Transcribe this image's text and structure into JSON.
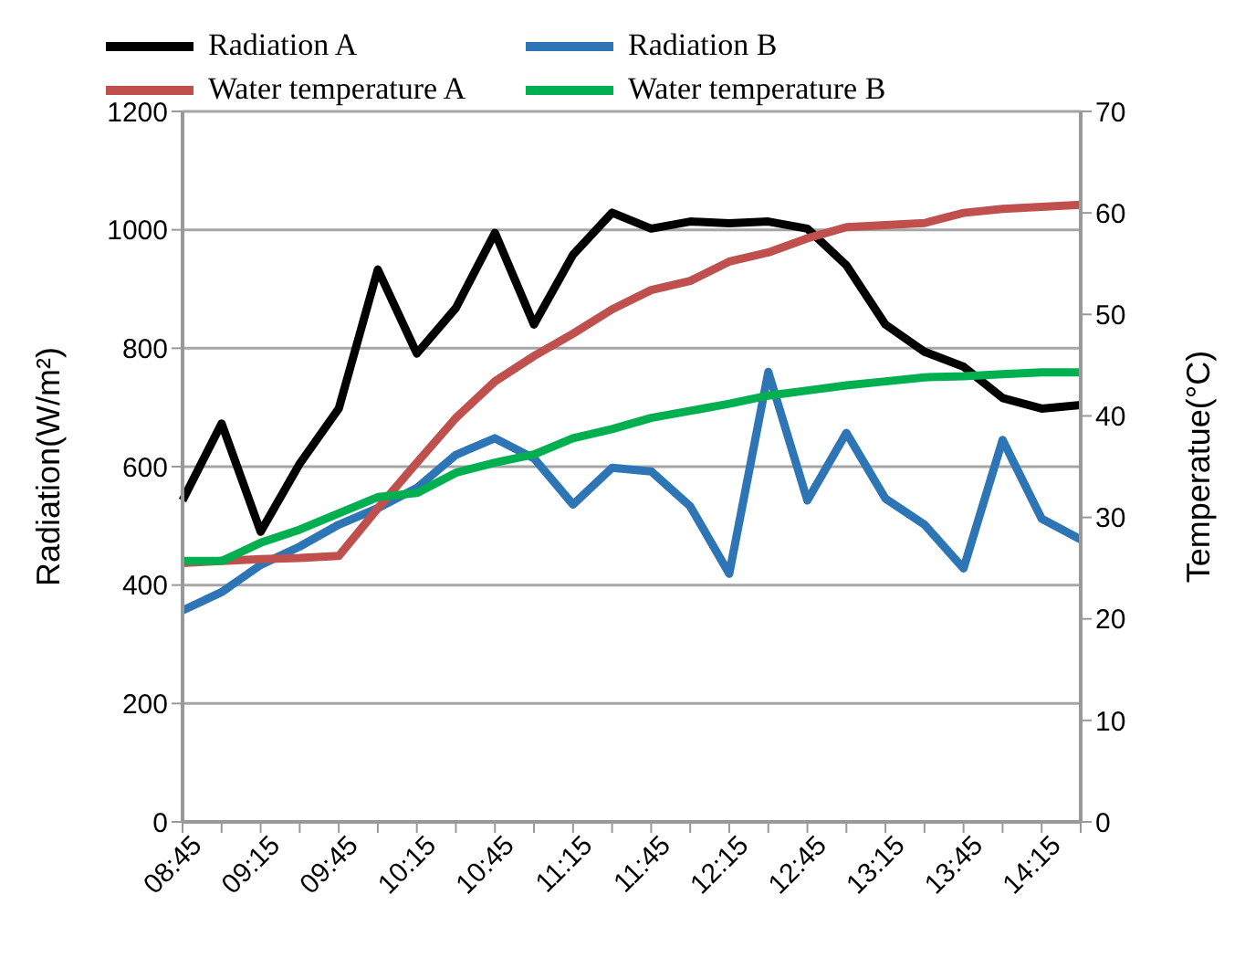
{
  "chart_data": {
    "type": "line",
    "xlabel": null,
    "ylabel": "Radiation(W/m²)",
    "y2label": "Temperatue(°C)",
    "categories": [
      "08:45",
      null,
      "09:15",
      null,
      "09:45",
      null,
      "10:15",
      null,
      "10:45",
      null,
      "11:15",
      null,
      "11:45",
      null,
      "12:15",
      null,
      "12:45",
      null,
      "13:15",
      null,
      "13:45",
      null,
      "14:15",
      null
    ],
    "series": [
      {
        "name": "Radiation A",
        "color": "#000000",
        "values": [
          543,
          673,
          490,
          605,
          698,
          933,
          791,
          868,
          995,
          840,
          958,
          1029,
          1002,
          1014,
          1011,
          1014,
          1002,
          940,
          840,
          794,
          769,
          716,
          698,
          704
        ]
      },
      {
        "name": "Radiation B",
        "color": "#2e75b6",
        "values": [
          357,
          388,
          434,
          465,
          502,
          530,
          564,
          620,
          648,
          614,
          536,
          598,
          592,
          533,
          419,
          760,
          543,
          657,
          546,
          502,
          428,
          645,
          512,
          477
        ]
      },
      {
        "name": "Water temperature A",
        "color": "#c0504d",
        "axis": "y2",
        "values": [
          25.5,
          25.7,
          25.9,
          26.0,
          26.2,
          30.9,
          35.4,
          39.8,
          43.4,
          45.9,
          48.1,
          50.5,
          52.4,
          53.3,
          55.2,
          56.1,
          57.5,
          58.6,
          58.8,
          59.0,
          60.0,
          60.4,
          60.6,
          60.8
        ]
      },
      {
        "name": "Water temperature B",
        "color": "#00b050",
        "axis": "y2",
        "values": [
          25.7,
          25.7,
          27.5,
          28.8,
          30.4,
          32.0,
          32.4,
          34.4,
          35.4,
          36.2,
          37.8,
          38.7,
          39.8,
          40.5,
          41.2,
          42.0,
          42.5,
          43.0,
          43.4,
          43.8,
          43.9,
          44.1,
          44.3,
          44.3
        ]
      }
    ],
    "ylim": [
      0,
      1200
    ],
    "yticks": [
      0,
      200,
      400,
      600,
      800,
      1000,
      1200
    ],
    "y2lim": [
      0,
      70
    ],
    "y2ticks": [
      0,
      10,
      20,
      30,
      40,
      50,
      60,
      70
    ],
    "grid": "y",
    "legend": "top",
    "marker": "none",
    "line_style": "solid"
  }
}
